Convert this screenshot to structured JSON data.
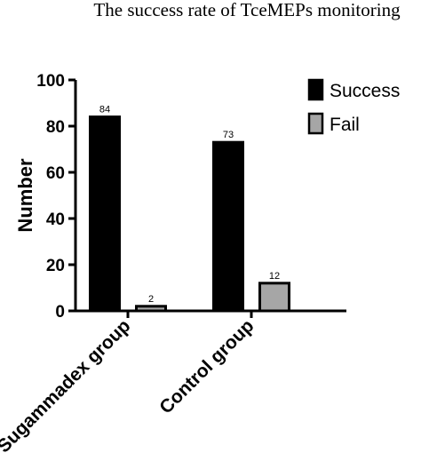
{
  "chart_data": {
    "type": "bar",
    "title": "The success rate of TceMEPs monitoring",
    "xlabel": "",
    "ylabel": "Number",
    "categories": [
      "Sugammadex group",
      "Control group"
    ],
    "series": [
      {
        "name": "Success",
        "values": [
          84,
          73
        ],
        "color": "#000000"
      },
      {
        "name": "Fail",
        "values": [
          2,
          12
        ],
        "color": "#a6a6a6"
      }
    ],
    "ylim": [
      0,
      100
    ],
    "yticks": [
      0,
      20,
      40,
      60,
      80,
      100
    ],
    "grid": false,
    "legend": "top-right"
  }
}
